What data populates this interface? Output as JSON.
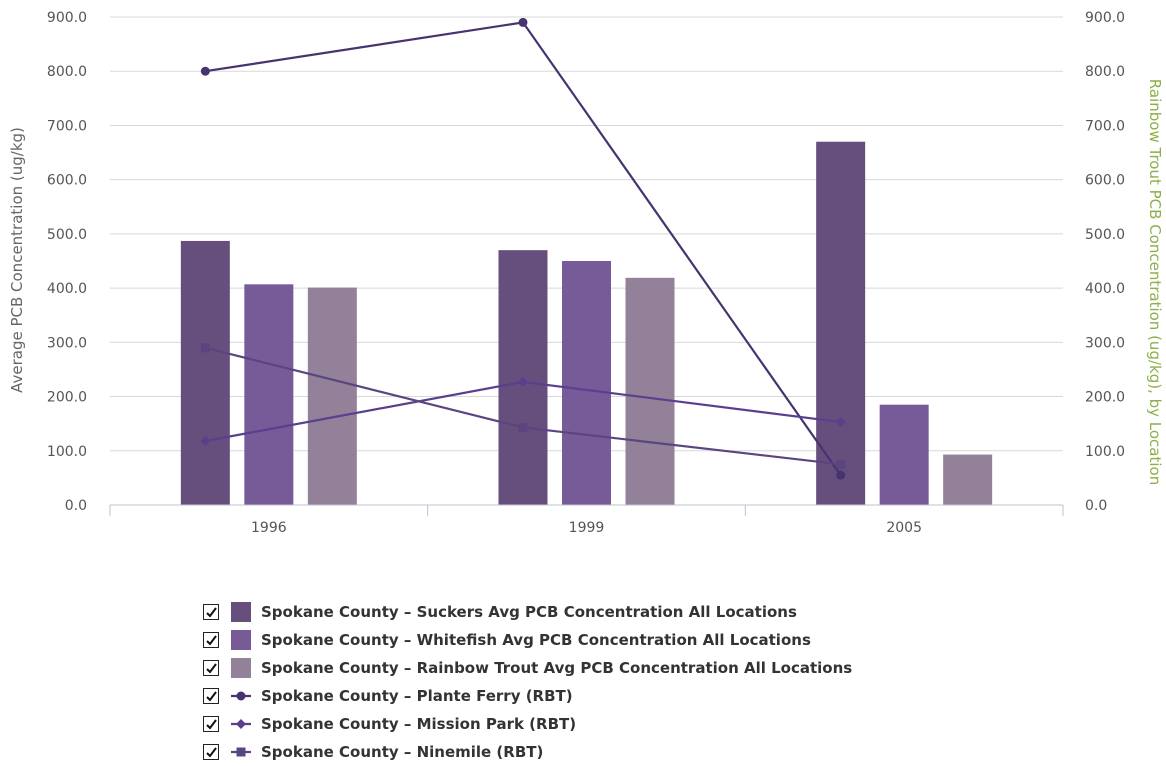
{
  "chart_data": {
    "type": "bar",
    "categories": [
      "1996",
      "1999",
      "2005"
    ],
    "left_axis": {
      "label": "Average PCB Concentration (ug/kg)",
      "ticks": [
        "0.0",
        "100.0",
        "200.0",
        "300.0",
        "400.0",
        "500.0",
        "600.0",
        "700.0",
        "800.0",
        "900.0"
      ],
      "range": [
        0,
        900
      ]
    },
    "right_axis": {
      "label": "Rainbow Trout PCB Concentration (ug/kg), by Location",
      "ticks": [
        "0.0",
        "100.0",
        "200.0",
        "300.0",
        "400.0",
        "500.0",
        "600.0",
        "700.0",
        "800.0",
        "900.0"
      ],
      "range": [
        0,
        900
      ]
    },
    "grid": true,
    "legend_position": "bottom",
    "series": [
      {
        "name": "Spokane County – Suckers Avg PCB Concentration All Locations",
        "kind": "bar",
        "color": "#664f7d",
        "values": [
          487,
          470,
          670
        ]
      },
      {
        "name": "Spokane County – Whitefish Avg PCB Concentration All Locations",
        "kind": "bar",
        "color": "#765b98",
        "values": [
          407,
          450,
          185
        ]
      },
      {
        "name": "Spokane County – Rainbow Trout Avg PCB Concentration All Locations",
        "kind": "bar",
        "color": "#938199",
        "values": [
          401,
          419,
          93
        ]
      },
      {
        "name": "Spokane County – Plante Ferry (RBT)",
        "kind": "line",
        "marker": "circle",
        "color": "#46336f",
        "values": [
          800,
          890,
          55
        ]
      },
      {
        "name": "Spokane County – Mission Park (RBT)",
        "kind": "line",
        "marker": "diamond",
        "color": "#5a3f8e",
        "values": [
          118,
          227,
          153
        ]
      },
      {
        "name": "Spokane County – Ninemile (RBT)",
        "kind": "line",
        "marker": "square",
        "color": "#5a4580",
        "values": [
          290,
          143,
          75
        ]
      }
    ]
  }
}
